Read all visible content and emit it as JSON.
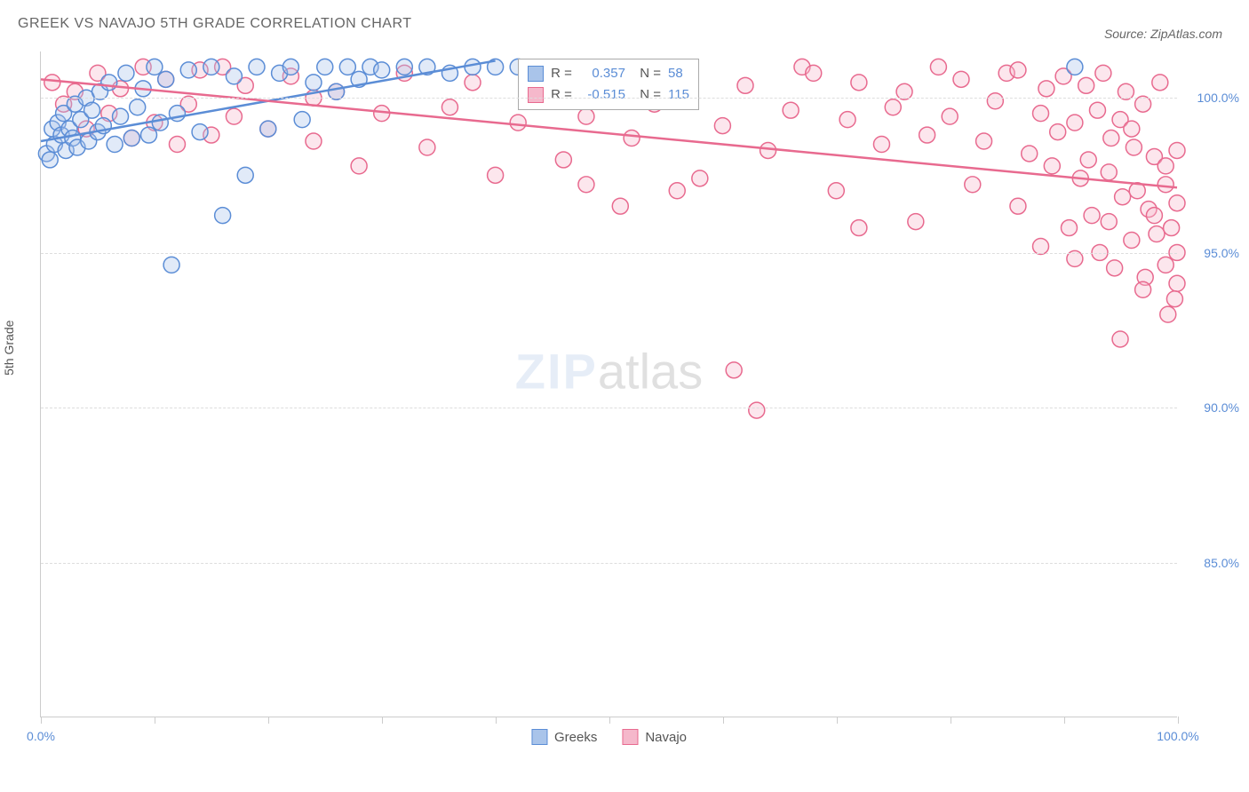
{
  "chart": {
    "title": "GREEK VS NAVAJO 5TH GRADE CORRELATION CHART",
    "source_label": "Source: ZipAtlas.com",
    "y_axis_label": "5th Grade",
    "type": "scatter",
    "background_color": "#ffffff",
    "grid_color": "#dddddd",
    "axis_color": "#cccccc",
    "tick_label_color": "#5b8dd6",
    "title_color": "#666666",
    "title_fontsize": 16,
    "label_fontsize": 14,
    "xlim": [
      0,
      100
    ],
    "ylim": [
      80,
      101.5
    ],
    "x_ticks": [
      0,
      10,
      20,
      30,
      40,
      50,
      60,
      70,
      80,
      90,
      100
    ],
    "x_tick_labels_shown": {
      "0": "0.0%",
      "100": "100.0%"
    },
    "y_ticks": [
      85,
      90,
      95,
      100
    ],
    "y_tick_labels": [
      "85.0%",
      "90.0%",
      "95.0%",
      "100.0%"
    ],
    "marker_radius": 9,
    "marker_fill_opacity": 0.35,
    "marker_stroke_width": 1.5,
    "line_width": 2.5,
    "watermark": {
      "part1": "ZIP",
      "part2": "atlas",
      "color1": "#9db9e0",
      "color2": "#888888",
      "opacity": 0.25,
      "fontsize": 56
    },
    "series": [
      {
        "name": "Greeks",
        "color": "#5b8dd6",
        "fill": "#a9c4ea",
        "R": "0.357",
        "N": "58",
        "regression": {
          "x1": 0,
          "y1": 98.6,
          "x2": 40,
          "y2": 101.2
        },
        "points": [
          [
            0.5,
            98.2
          ],
          [
            0.8,
            98.0
          ],
          [
            1.0,
            99.0
          ],
          [
            1.2,
            98.5
          ],
          [
            1.5,
            99.2
          ],
          [
            1.8,
            98.8
          ],
          [
            2.0,
            99.5
          ],
          [
            2.2,
            98.3
          ],
          [
            2.5,
            99.0
          ],
          [
            2.8,
            98.7
          ],
          [
            3.0,
            99.8
          ],
          [
            3.2,
            98.4
          ],
          [
            3.5,
            99.3
          ],
          [
            4.0,
            100.0
          ],
          [
            4.2,
            98.6
          ],
          [
            4.5,
            99.6
          ],
          [
            5.0,
            98.9
          ],
          [
            5.2,
            100.2
          ],
          [
            5.5,
            99.1
          ],
          [
            6.0,
            100.5
          ],
          [
            6.5,
            98.5
          ],
          [
            7.0,
            99.4
          ],
          [
            7.5,
            100.8
          ],
          [
            8.0,
            98.7
          ],
          [
            8.5,
            99.7
          ],
          [
            9.0,
            100.3
          ],
          [
            9.5,
            98.8
          ],
          [
            10,
            101.0
          ],
          [
            10.5,
            99.2
          ],
          [
            11,
            100.6
          ],
          [
            11.5,
            94.6
          ],
          [
            12,
            99.5
          ],
          [
            13,
            100.9
          ],
          [
            14,
            98.9
          ],
          [
            15,
            101.0
          ],
          [
            16,
            96.2
          ],
          [
            17,
            100.7
          ],
          [
            18,
            97.5
          ],
          [
            19,
            101.0
          ],
          [
            20,
            99.0
          ],
          [
            21,
            100.8
          ],
          [
            22,
            101.0
          ],
          [
            23,
            99.3
          ],
          [
            24,
            100.5
          ],
          [
            25,
            101.0
          ],
          [
            26,
            100.2
          ],
          [
            27,
            101.0
          ],
          [
            28,
            100.6
          ],
          [
            29,
            101.0
          ],
          [
            30,
            100.9
          ],
          [
            32,
            101.0
          ],
          [
            34,
            101.0
          ],
          [
            36,
            100.8
          ],
          [
            38,
            101.0
          ],
          [
            40,
            101.0
          ],
          [
            42,
            101.0
          ],
          [
            44,
            100.9
          ],
          [
            91,
            101.0
          ]
        ]
      },
      {
        "name": "Navajo",
        "color": "#e86a8f",
        "fill": "#f5b8cb",
        "R": "-0.515",
        "N": "115",
        "regression": {
          "x1": 0,
          "y1": 100.6,
          "x2": 100,
          "y2": 97.1
        },
        "points": [
          [
            1,
            100.5
          ],
          [
            2,
            99.8
          ],
          [
            3,
            100.2
          ],
          [
            4,
            99.0
          ],
          [
            5,
            100.8
          ],
          [
            6,
            99.5
          ],
          [
            7,
            100.3
          ],
          [
            8,
            98.7
          ],
          [
            9,
            101.0
          ],
          [
            10,
            99.2
          ],
          [
            11,
            100.6
          ],
          [
            12,
            98.5
          ],
          [
            13,
            99.8
          ],
          [
            14,
            100.9
          ],
          [
            15,
            98.8
          ],
          [
            16,
            101.0
          ],
          [
            17,
            99.4
          ],
          [
            18,
            100.4
          ],
          [
            20,
            99.0
          ],
          [
            22,
            100.7
          ],
          [
            24,
            98.6
          ],
          [
            26,
            100.2
          ],
          [
            28,
            97.8
          ],
          [
            30,
            99.5
          ],
          [
            32,
            100.8
          ],
          [
            34,
            98.4
          ],
          [
            36,
            99.7
          ],
          [
            38,
            100.5
          ],
          [
            40,
            97.5
          ],
          [
            42,
            99.2
          ],
          [
            44,
            100.6
          ],
          [
            46,
            98.0
          ],
          [
            48,
            99.4
          ],
          [
            50,
            100.3
          ],
          [
            51,
            96.5
          ],
          [
            52,
            98.7
          ],
          [
            54,
            99.8
          ],
          [
            56,
            100.7
          ],
          [
            58,
            97.4
          ],
          [
            60,
            99.1
          ],
          [
            61,
            91.2
          ],
          [
            62,
            100.4
          ],
          [
            63,
            89.9
          ],
          [
            64,
            98.3
          ],
          [
            66,
            99.6
          ],
          [
            67,
            101.0
          ],
          [
            68,
            100.8
          ],
          [
            70,
            97.0
          ],
          [
            71,
            99.3
          ],
          [
            72,
            100.5
          ],
          [
            74,
            98.5
          ],
          [
            75,
            99.7
          ],
          [
            76,
            100.2
          ],
          [
            77,
            96.0
          ],
          [
            78,
            98.8
          ],
          [
            79,
            101.0
          ],
          [
            80,
            99.4
          ],
          [
            81,
            100.6
          ],
          [
            82,
            97.2
          ],
          [
            83,
            98.6
          ],
          [
            84,
            99.9
          ],
          [
            85,
            100.8
          ],
          [
            86,
            96.5
          ],
          [
            87,
            98.2
          ],
          [
            88,
            99.5
          ],
          [
            88.5,
            100.3
          ],
          [
            89,
            97.8
          ],
          [
            89.5,
            98.9
          ],
          [
            90,
            100.7
          ],
          [
            90.5,
            95.8
          ],
          [
            91,
            99.2
          ],
          [
            91.5,
            97.4
          ],
          [
            92,
            100.4
          ],
          [
            92.2,
            98.0
          ],
          [
            92.5,
            96.2
          ],
          [
            93,
            99.6
          ],
          [
            93.2,
            95.0
          ],
          [
            93.5,
            100.8
          ],
          [
            94,
            97.6
          ],
          [
            94.2,
            98.7
          ],
          [
            94.5,
            94.5
          ],
          [
            95,
            99.3
          ],
          [
            95.2,
            96.8
          ],
          [
            95.5,
            100.2
          ],
          [
            96,
            95.4
          ],
          [
            96.2,
            98.4
          ],
          [
            96.5,
            97.0
          ],
          [
            97,
            99.8
          ],
          [
            97.2,
            94.2
          ],
          [
            97.5,
            96.4
          ],
          [
            98,
            98.1
          ],
          [
            98.2,
            95.6
          ],
          [
            98.5,
            100.5
          ],
          [
            99,
            97.2
          ],
          [
            99.2,
            93.0
          ],
          [
            99.5,
            95.8
          ],
          [
            100,
            94.0
          ],
          [
            100,
            96.6
          ],
          [
            100,
            98.3
          ],
          [
            99.8,
            93.5
          ],
          [
            24,
            100.0
          ],
          [
            48,
            97.2
          ],
          [
            56,
            97.0
          ],
          [
            72,
            95.8
          ],
          [
            86,
            100.9
          ],
          [
            88,
            95.2
          ],
          [
            91,
            94.8
          ],
          [
            94,
            96.0
          ],
          [
            96,
            99.0
          ],
          [
            98,
            96.2
          ],
          [
            95,
            92.2
          ],
          [
            97,
            93.8
          ],
          [
            99,
            94.6
          ],
          [
            100,
            95.0
          ],
          [
            99,
            97.8
          ]
        ]
      }
    ],
    "bottom_legend": [
      {
        "label": "Greeks",
        "color": "#5b8dd6",
        "fill": "#a9c4ea"
      },
      {
        "label": "Navajo",
        "color": "#e86a8f",
        "fill": "#f5b8cb"
      }
    ]
  }
}
